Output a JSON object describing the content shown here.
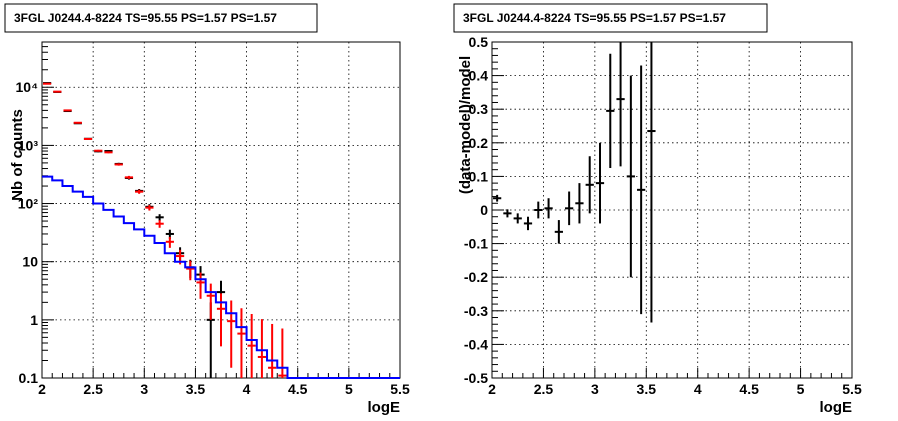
{
  "colors": {
    "data": "#000000",
    "model_total": "#ff0000",
    "model_source": "#0000ff"
  },
  "chart_data": [
    {
      "type": "line",
      "title": "3FGL J0244.4-8224 TS=95.55 PS=1.57 PS=1.57",
      "xlabel": "logE",
      "ylabel": "Nb of counts",
      "xlim": [
        2,
        5.5
      ],
      "ylim": [
        0.1,
        60000
      ],
      "yscale": "log",
      "grid": true,
      "x_ticks": [
        "2",
        "2.5",
        "3",
        "3.5",
        "4",
        "4.5",
        "5",
        "5.5"
      ],
      "y_ticks": [
        "0.1",
        "1",
        "10",
        "10²",
        "10³",
        "10⁴"
      ],
      "series": [
        {
          "color": "#000000",
          "style": "errorbar",
          "x": [
            2.05,
            2.15,
            2.25,
            2.35,
            2.45,
            2.55,
            2.65,
            2.75,
            2.85,
            2.95,
            3.05,
            3.15,
            3.25,
            3.35,
            3.45,
            3.55,
            3.65,
            3.75
          ],
          "y": [
            11800,
            8300,
            3900,
            2400,
            1300,
            790,
            800,
            480,
            275,
            165,
            88,
            58,
            30,
            14,
            8,
            6,
            1,
            3
          ],
          "yerr_low": [
            110,
            90,
            60,
            50,
            36,
            28,
            28,
            22,
            17,
            13,
            9.4,
            7.6,
            5.5,
            3.7,
            2.8,
            2.4,
            0.9,
            1.7
          ],
          "yerr_high": [
            110,
            90,
            60,
            50,
            36,
            28,
            28,
            22,
            17,
            13,
            9.4,
            7.6,
            5.5,
            3.7,
            2.8,
            2.4,
            1.0,
            1.7
          ]
        },
        {
          "color": "#ff0000",
          "style": "errorbar",
          "x": [
            2.05,
            2.15,
            2.25,
            2.35,
            2.45,
            2.55,
            2.65,
            2.75,
            2.85,
            2.95,
            3.05,
            3.15,
            3.25,
            3.35,
            3.45,
            3.55,
            3.65,
            3.75,
            3.85,
            3.95,
            4.05,
            4.15,
            4.25,
            4.35
          ],
          "y": [
            11500,
            8400,
            4000,
            2450,
            1290,
            810,
            760,
            470,
            282,
            160,
            85,
            45,
            22,
            12.5,
            7.6,
            4.4,
            2.6,
            1.55,
            0.95,
            0.58,
            0.36,
            0.23,
            0.15,
            0.11
          ],
          "yerr_low": [
            110,
            90,
            60,
            50,
            36,
            28,
            28,
            22,
            17,
            13,
            9.2,
            6.7,
            4.7,
            3.5,
            2.8,
            2.1,
            1.6,
            1.2,
            0.8,
            0.5,
            0.35,
            0.25,
            0.2,
            0.15
          ],
          "yerr_high": [
            110,
            90,
            60,
            50,
            36,
            28,
            28,
            22,
            17,
            13,
            9.2,
            6.7,
            4.7,
            3.5,
            2.8,
            2.1,
            1.6,
            1.3,
            1.2,
            1.0,
            0.9,
            0.8,
            0.7,
            0.6
          ]
        },
        {
          "color": "#0000ff",
          "style": "step",
          "bin_edges": [
            2.0,
            2.1,
            2.2,
            2.3,
            2.4,
            2.5,
            2.6,
            2.7,
            2.8,
            2.9,
            3.0,
            3.1,
            3.2,
            3.3,
            3.4,
            3.5,
            3.6,
            3.7,
            3.8,
            3.9,
            4.0,
            4.1,
            4.2,
            4.3,
            4.4,
            5.5
          ],
          "values": [
            290,
            250,
            200,
            160,
            130,
            100,
            78,
            60,
            46,
            36,
            28,
            21,
            14,
            10,
            8,
            5,
            3,
            2,
            1.3,
            0.75,
            0.45,
            0.3,
            0.2,
            0.15,
            0.1
          ]
        }
      ]
    },
    {
      "type": "scatter",
      "title": "3FGL J0244.4-8224 TS=95.55 PS=1.57 PS=1.57",
      "xlabel": "logE",
      "ylabel": "(data-model)/model",
      "xlim": [
        2,
        5.5
      ],
      "ylim": [
        -0.5,
        0.5
      ],
      "grid": true,
      "x_ticks": [
        "2",
        "2.5",
        "3",
        "3.5",
        "4",
        "4.5",
        "5",
        "5.5"
      ],
      "y_ticks": [
        "-0.5",
        "-0.4",
        "-0.3",
        "-0.2",
        "-0.1",
        "0",
        "0.1",
        "0.2",
        "0.3",
        "0.4",
        "0.5"
      ],
      "series": [
        {
          "color": "#000000",
          "style": "errorbar",
          "x": [
            2.05,
            2.15,
            2.25,
            2.35,
            2.45,
            2.55,
            2.65,
            2.75,
            2.85,
            2.95,
            3.05,
            3.15,
            3.25,
            3.35,
            3.45,
            3.55
          ],
          "y": [
            0.035,
            -0.01,
            -0.025,
            -0.04,
            0.0,
            0.005,
            -0.065,
            0.005,
            0.02,
            0.075,
            0.08,
            0.295,
            0.33,
            0.1,
            0.06,
            0.235
          ],
          "yerr": [
            0.01,
            0.012,
            0.015,
            0.02,
            0.025,
            0.03,
            0.035,
            0.05,
            0.06,
            0.085,
            0.12,
            0.17,
            0.2,
            0.3,
            0.37,
            0.57
          ]
        }
      ]
    }
  ]
}
